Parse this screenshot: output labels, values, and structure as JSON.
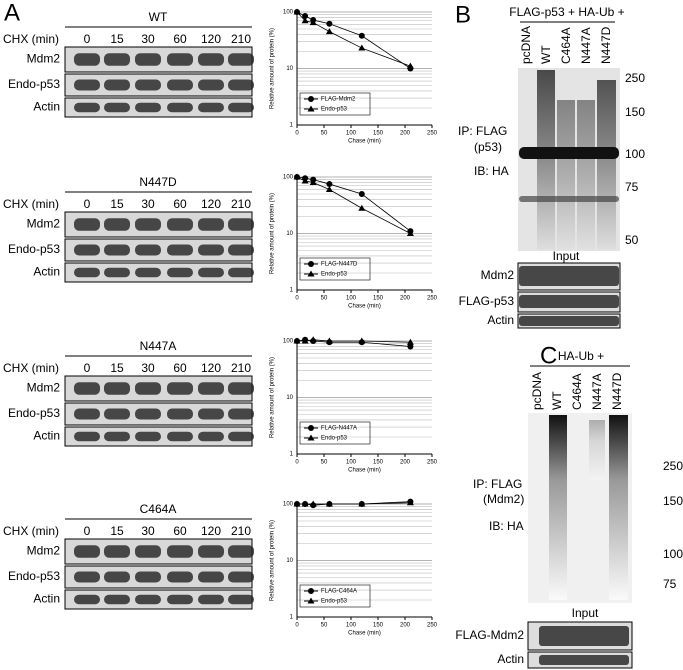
{
  "chart_data": [
    {
      "type": "scatter",
      "y_label": "Relative amount of protein (%)",
      "x_label": "Chase (min)",
      "log_y": true,
      "minor_grid": true,
      "xlim": [
        0,
        250
      ],
      "xticks": [
        0,
        50,
        100,
        150,
        200,
        250
      ],
      "ylim": [
        1,
        100
      ],
      "yticks": [
        1,
        10,
        100
      ],
      "series": [
        {
          "name": "FLAG-Mdm2",
          "color": "#000000",
          "marker": "circle",
          "x": [
            0,
            15,
            30,
            60,
            120,
            210
          ],
          "values": [
            100,
            85,
            72,
            62,
            38,
            10
          ]
        },
        {
          "name": "Endo-p53",
          "color": "#000000",
          "marker": "triangle",
          "x": [
            0,
            15,
            30,
            60,
            120,
            210
          ],
          "values": [
            100,
            70,
            65,
            45,
            23,
            11
          ]
        }
      ]
    },
    {
      "type": "scatter",
      "y_label": "Relative amount of protein (%)",
      "x_label": "Chase (min)",
      "log_y": true,
      "minor_grid": true,
      "xlim": [
        0,
        250
      ],
      "xticks": [
        0,
        50,
        100,
        150,
        200,
        250
      ],
      "ylim": [
        1,
        100
      ],
      "yticks": [
        1,
        10,
        100
      ],
      "series": [
        {
          "name": "FLAG-N447D",
          "color": "#000000",
          "marker": "circle",
          "x": [
            0,
            15,
            30,
            60,
            120,
            210
          ],
          "values": [
            100,
            95,
            90,
            75,
            50,
            11
          ]
        },
        {
          "name": "Endo-p53",
          "color": "#000000",
          "marker": "triangle",
          "x": [
            0,
            15,
            30,
            60,
            120,
            210
          ],
          "values": [
            100,
            85,
            80,
            60,
            28,
            10
          ]
        }
      ]
    },
    {
      "type": "scatter",
      "y_label": "Relative amount of protein (%)",
      "x_label": "Chase (min)",
      "log_y": true,
      "minor_grid": true,
      "xlim": [
        0,
        250
      ],
      "xticks": [
        0,
        50,
        100,
        150,
        200,
        250
      ],
      "ylim": [
        1,
        100
      ],
      "yticks": [
        1,
        10,
        100
      ],
      "series": [
        {
          "name": "FLAG-N447A",
          "color": "#000000",
          "marker": "circle",
          "x": [
            0,
            15,
            30,
            60,
            120,
            210
          ],
          "values": [
            100,
            105,
            100,
            95,
            95,
            80
          ]
        },
        {
          "name": "Endo-p53",
          "color": "#000000",
          "marker": "triangle",
          "x": [
            0,
            15,
            30,
            60,
            120,
            210
          ],
          "values": [
            100,
            100,
            105,
            100,
            100,
            95
          ]
        }
      ]
    },
    {
      "type": "scatter",
      "y_label": "Relative amount of protein (%)",
      "x_label": "Chase (min)",
      "log_y": true,
      "minor_grid": true,
      "xlim": [
        0,
        250
      ],
      "xticks": [
        0,
        50,
        100,
        150,
        200,
        250
      ],
      "ylim": [
        1,
        100
      ],
      "yticks": [
        1,
        10,
        100
      ],
      "series": [
        {
          "name": "FLAG-C464A",
          "color": "#000000",
          "marker": "circle",
          "x": [
            0,
            15,
            30,
            60,
            120,
            210
          ],
          "values": [
            100,
            100,
            95,
            100,
            100,
            110
          ]
        },
        {
          "name": "Endo-p53",
          "color": "#000000",
          "marker": "triangle",
          "x": [
            0,
            15,
            30,
            60,
            120,
            210
          ],
          "values": [
            100,
            100,
            100,
            100,
            100,
            105
          ]
        }
      ]
    }
  ],
  "panels": {
    "A": {
      "label": "A",
      "blocks": [
        {
          "title": "WT",
          "chx_label": "CHX (min)",
          "times": [
            0,
            15,
            30,
            60,
            120,
            210
          ],
          "rows": [
            "Mdm2",
            "Endo-p53",
            "Actin"
          ]
        },
        {
          "title": "N447D",
          "chx_label": "CHX (min)",
          "times": [
            0,
            15,
            30,
            60,
            120,
            210
          ],
          "rows": [
            "Mdm2",
            "Endo-p53",
            "Actin"
          ]
        },
        {
          "title": "N447A",
          "chx_label": "CHX (min)",
          "times": [
            0,
            15,
            30,
            60,
            120,
            210
          ],
          "rows": [
            "Mdm2",
            "Endo-p53",
            "Actin"
          ]
        },
        {
          "title": "C464A",
          "chx_label": "CHX (min)",
          "times": [
            0,
            15,
            30,
            60,
            120,
            210
          ],
          "rows": [
            "Mdm2",
            "Endo-p53",
            "Actin"
          ]
        }
      ]
    },
    "B": {
      "label": "B",
      "header": "FLAG-p53 + HA-Ub +",
      "lanes": [
        "pcDNA",
        "WT",
        "C464A",
        "N447A",
        "N447D"
      ],
      "markers": [
        250,
        150,
        100,
        75,
        50
      ],
      "ip": "IP: FLAG",
      "ip_target": "(p53)",
      "ib": "IB: HA",
      "input": "Input",
      "input_rows": [
        "Mdm2",
        "FLAG-p53",
        "Actin"
      ]
    },
    "C": {
      "label": "C",
      "header": "HA-Ub +",
      "lanes": [
        "pcDNA",
        "WT",
        "C464A",
        "N447A",
        "N447D"
      ],
      "markers": [
        250,
        150,
        100,
        75
      ],
      "ip": "IP: FLAG",
      "ip_target": "(Mdm2)",
      "ib": "IB: HA",
      "input": "Input",
      "input_rows": [
        "FLAG-Mdm2",
        "Actin"
      ]
    }
  }
}
